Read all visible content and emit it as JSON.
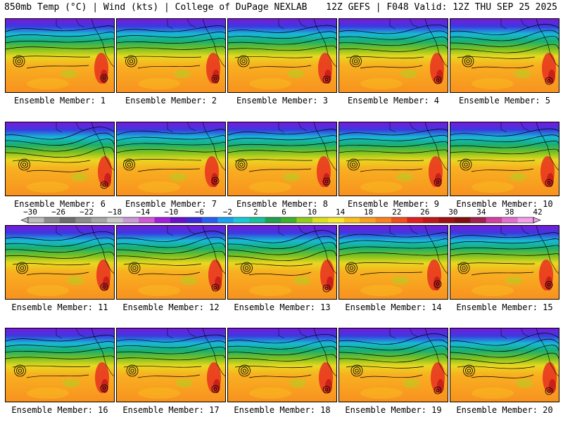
{
  "header": {
    "left": "850mb Temp (°C) | Wind (kts) | College of DuPage NEXLAB",
    "right": "12Z GEFS | F048 Valid: 12Z THU SEP 25 2025"
  },
  "panels": [
    {
      "caption": "Ensemble Member: 1"
    },
    {
      "caption": "Ensemble Member: 2"
    },
    {
      "caption": "Ensemble Member: 3"
    },
    {
      "caption": "Ensemble Member: 4"
    },
    {
      "caption": "Ensemble Member: 5"
    },
    {
      "caption": "Ensemble Member: 6"
    },
    {
      "caption": "Ensemble Member: 7"
    },
    {
      "caption": "Ensemble Member: 8"
    },
    {
      "caption": "Ensemble Member: 9"
    },
    {
      "caption": "Ensemble Member: 10"
    },
    {
      "caption": "Ensemble Member: 11"
    },
    {
      "caption": "Ensemble Member: 12"
    },
    {
      "caption": "Ensemble Member: 13"
    },
    {
      "caption": "Ensemble Member: 14"
    },
    {
      "caption": "Ensemble Member: 15"
    },
    {
      "caption": "Ensemble Member: 16"
    },
    {
      "caption": "Ensemble Member: 17"
    },
    {
      "caption": "Ensemble Member: 18"
    },
    {
      "caption": "Ensemble Member: 19"
    },
    {
      "caption": "Ensemble Member: 20"
    }
  ],
  "colorbar": {
    "ticks": [
      "−30",
      "−26",
      "−22",
      "−18",
      "−14",
      "−10",
      "−6",
      "−2",
      "2",
      "6",
      "10",
      "14",
      "18",
      "22",
      "26",
      "30",
      "34",
      "38",
      "42"
    ],
    "colors": [
      "#bdbdbd",
      "#8c8c8c",
      "#6e6e6e",
      "#8c8c8c",
      "#a6a6a6",
      "#c8c8c8",
      "#c99ad6",
      "#d05ad6",
      "#a020d8",
      "#6a10c8",
      "#3c2ad8",
      "#2a5ef0",
      "#1aa0f0",
      "#18c8d8",
      "#18c0a0",
      "#20a050",
      "#40b030",
      "#90cc20",
      "#d8e020",
      "#f8e830",
      "#f8c020",
      "#f8a020",
      "#f88020",
      "#f05020",
      "#e02020",
      "#c01818",
      "#a01010",
      "#801010",
      "#a02050",
      "#d040a0",
      "#e070d0",
      "#f0a0e8"
    ]
  }
}
